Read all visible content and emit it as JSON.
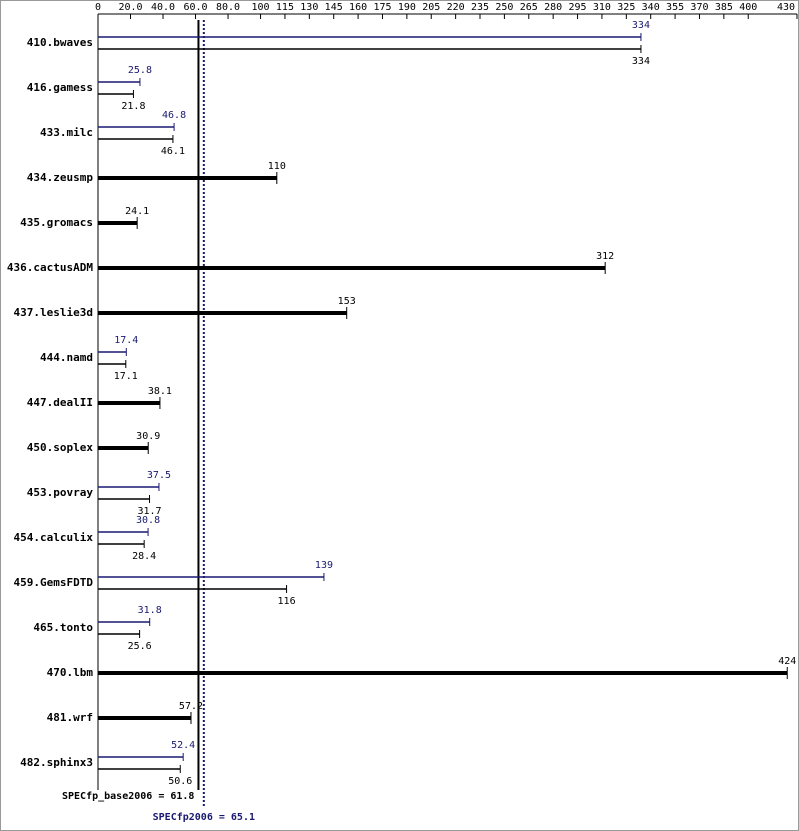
{
  "chart_data": {
    "type": "bar",
    "categories": [
      "410.bwaves",
      "416.gamess",
      "433.milc",
      "434.zeusmp",
      "435.gromacs",
      "436.cactusADM",
      "437.leslie3d",
      "444.namd",
      "447.dealII",
      "450.soplex",
      "453.povray",
      "454.calculix",
      "459.GemsFDTD",
      "465.tonto",
      "470.lbm",
      "481.wrf",
      "482.sphinx3"
    ],
    "series": [
      {
        "color": "#191970",
        "values": [
          334,
          25.8,
          46.8,
          null,
          null,
          null,
          null,
          17.4,
          null,
          null,
          37.5,
          30.8,
          139,
          31.8,
          null,
          null,
          52.4
        ]
      },
      {
        "color": "#000000",
        "values": [
          334,
          21.8,
          46.1,
          110,
          24.1,
          312,
          153,
          17.1,
          38.1,
          30.9,
          31.7,
          28.4,
          116,
          25.6,
          424,
          57.2,
          50.6
        ]
      }
    ],
    "xlim": [
      0,
      430
    ],
    "xticks": [
      0,
      {
        "value": 20,
        "label": "20.0"
      },
      {
        "value": 40,
        "label": "40.0"
      },
      {
        "value": 60,
        "label": "60.0"
      },
      {
        "value": 80,
        "label": "80.0"
      },
      100,
      115,
      130,
      145,
      160,
      175,
      190,
      205,
      220,
      235,
      250,
      265,
      280,
      295,
      310,
      325,
      340,
      355,
      370,
      385,
      400,
      430
    ],
    "reference_lines": [
      {
        "value": 61.8,
        "label": "SPECfp_base2006 = 61.8",
        "color": "#000000"
      },
      {
        "value": 65.1,
        "label": "SPECfp2006 = 65.1",
        "color": "#191970"
      }
    ]
  }
}
